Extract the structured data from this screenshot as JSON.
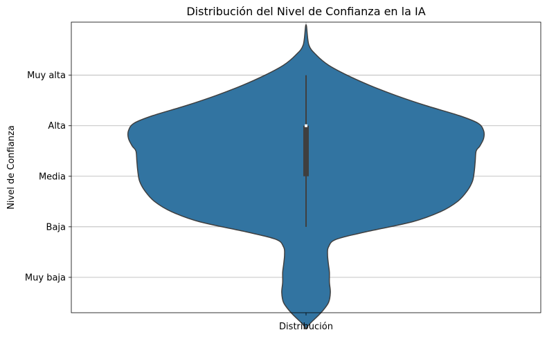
{
  "chart_data": {
    "type": "violin",
    "title": "Distribución del Nivel de Confianza en la IA",
    "xlabel": "",
    "ylabel": "Nivel de Confianza",
    "categories": [
      "Distribución"
    ],
    "y_categories": [
      "Muy baja",
      "Baja",
      "Media",
      "Alta",
      "Muy alta"
    ],
    "y_tick_values": [
      1,
      2,
      3,
      4,
      5
    ],
    "ylim": [
      0.3,
      6.05
    ],
    "grid": true,
    "fill_color": "#3274a1",
    "edge_color": "#3f3f3f",
    "box": {
      "q1": 3,
      "median": 4,
      "q3": 4,
      "whisker_low": 2,
      "whisker_high": 5
    },
    "density_profile": [
      {
        "y": -0.007,
        "w": 0.0
      },
      {
        "y": 0.1,
        "w": 0.025
      },
      {
        "y": 0.3,
        "w": 0.08
      },
      {
        "y": 0.5,
        "w": 0.12
      },
      {
        "y": 0.7,
        "w": 0.13
      },
      {
        "y": 0.9,
        "w": 0.125
      },
      {
        "y": 1.1,
        "w": 0.125
      },
      {
        "y": 1.25,
        "w": 0.12
      },
      {
        "y": 1.45,
        "w": 0.115
      },
      {
        "y": 1.6,
        "w": 0.12
      },
      {
        "y": 1.75,
        "w": 0.16
      },
      {
        "y": 1.9,
        "w": 0.32
      },
      {
        "y": 2.1,
        "w": 0.57
      },
      {
        "y": 2.3,
        "w": 0.72
      },
      {
        "y": 2.5,
        "w": 0.81
      },
      {
        "y": 2.7,
        "w": 0.86
      },
      {
        "y": 2.9,
        "w": 0.89
      },
      {
        "y": 3.1,
        "w": 0.9
      },
      {
        "y": 3.3,
        "w": 0.905
      },
      {
        "y": 3.5,
        "w": 0.91
      },
      {
        "y": 3.6,
        "w": 0.93
      },
      {
        "y": 3.75,
        "w": 0.95
      },
      {
        "y": 3.9,
        "w": 0.95
      },
      {
        "y": 4.05,
        "w": 0.92
      },
      {
        "y": 4.2,
        "w": 0.82
      },
      {
        "y": 4.4,
        "w": 0.64
      },
      {
        "y": 4.6,
        "w": 0.48
      },
      {
        "y": 4.8,
        "w": 0.34
      },
      {
        "y": 5.0,
        "w": 0.22
      },
      {
        "y": 5.2,
        "w": 0.12
      },
      {
        "y": 5.4,
        "w": 0.055
      },
      {
        "y": 5.6,
        "w": 0.015
      },
      {
        "y": 6.0,
        "w": 0.0
      }
    ]
  }
}
